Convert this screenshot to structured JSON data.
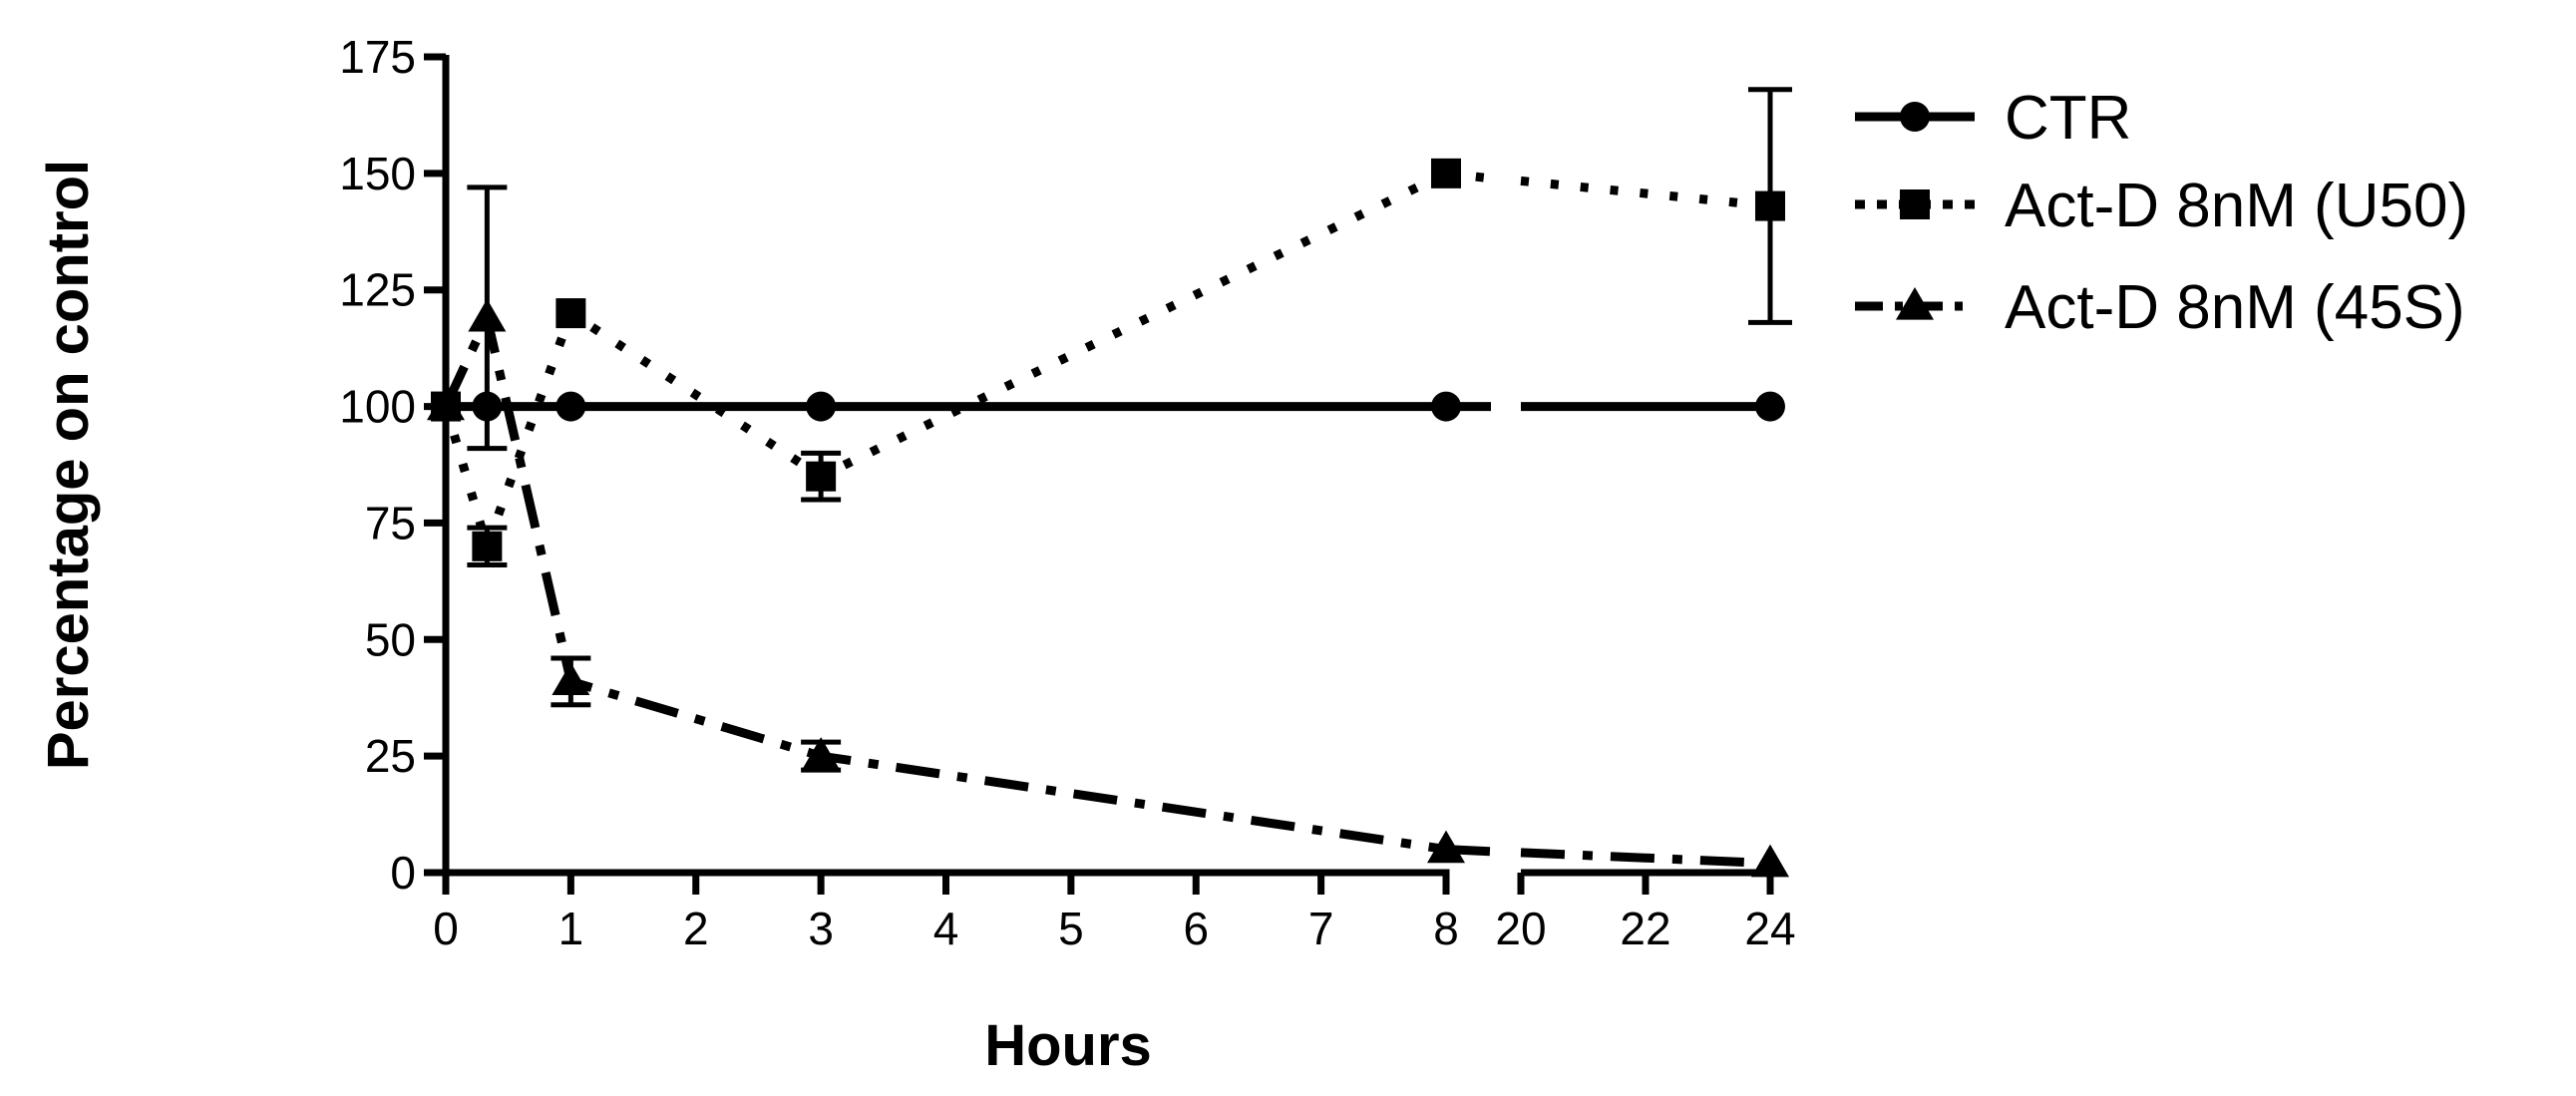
{
  "chart_data": {
    "type": "line",
    "xlabel": "Hours",
    "ylabel": "Percentage on control",
    "ylim": [
      0,
      175
    ],
    "yticks": [
      "0",
      "25",
      "50",
      "75",
      "100",
      "125",
      "150",
      "175"
    ],
    "x_axis_segments": [
      {
        "range": [
          0,
          8
        ],
        "ticks": [
          "0",
          "1",
          "2",
          "3",
          "4",
          "5",
          "6",
          "7",
          "8"
        ]
      },
      {
        "range": [
          20,
          24
        ],
        "ticks": [
          "20",
          "22",
          "24"
        ]
      }
    ],
    "grid": false,
    "legend_position": "top-right",
    "series": [
      {
        "name": "CTR",
        "marker": "circle",
        "line_style": "solid",
        "color": "#000000",
        "x": [
          0,
          0.33,
          1,
          3,
          8,
          24
        ],
        "y": [
          100,
          100,
          100,
          100,
          100,
          100
        ],
        "err": [
          0,
          0,
          0,
          0,
          0,
          0
        ]
      },
      {
        "name": "Act-D 8nM (U50)",
        "marker": "square",
        "line_style": "dotted",
        "color": "#000000",
        "x": [
          0,
          0.33,
          1,
          3,
          8,
          24
        ],
        "y": [
          100,
          70,
          120,
          85,
          150,
          143
        ],
        "err": [
          0,
          4,
          0,
          5,
          0,
          25
        ]
      },
      {
        "name": "Act-D 8nM (45S)",
        "marker": "triangle",
        "line_style": "dash-dot",
        "color": "#000000",
        "x": [
          0,
          0.33,
          1,
          3,
          8,
          24
        ],
        "y": [
          100,
          119,
          41,
          25,
          5,
          2
        ],
        "err": [
          0,
          28,
          5,
          3,
          0,
          0
        ]
      }
    ]
  }
}
